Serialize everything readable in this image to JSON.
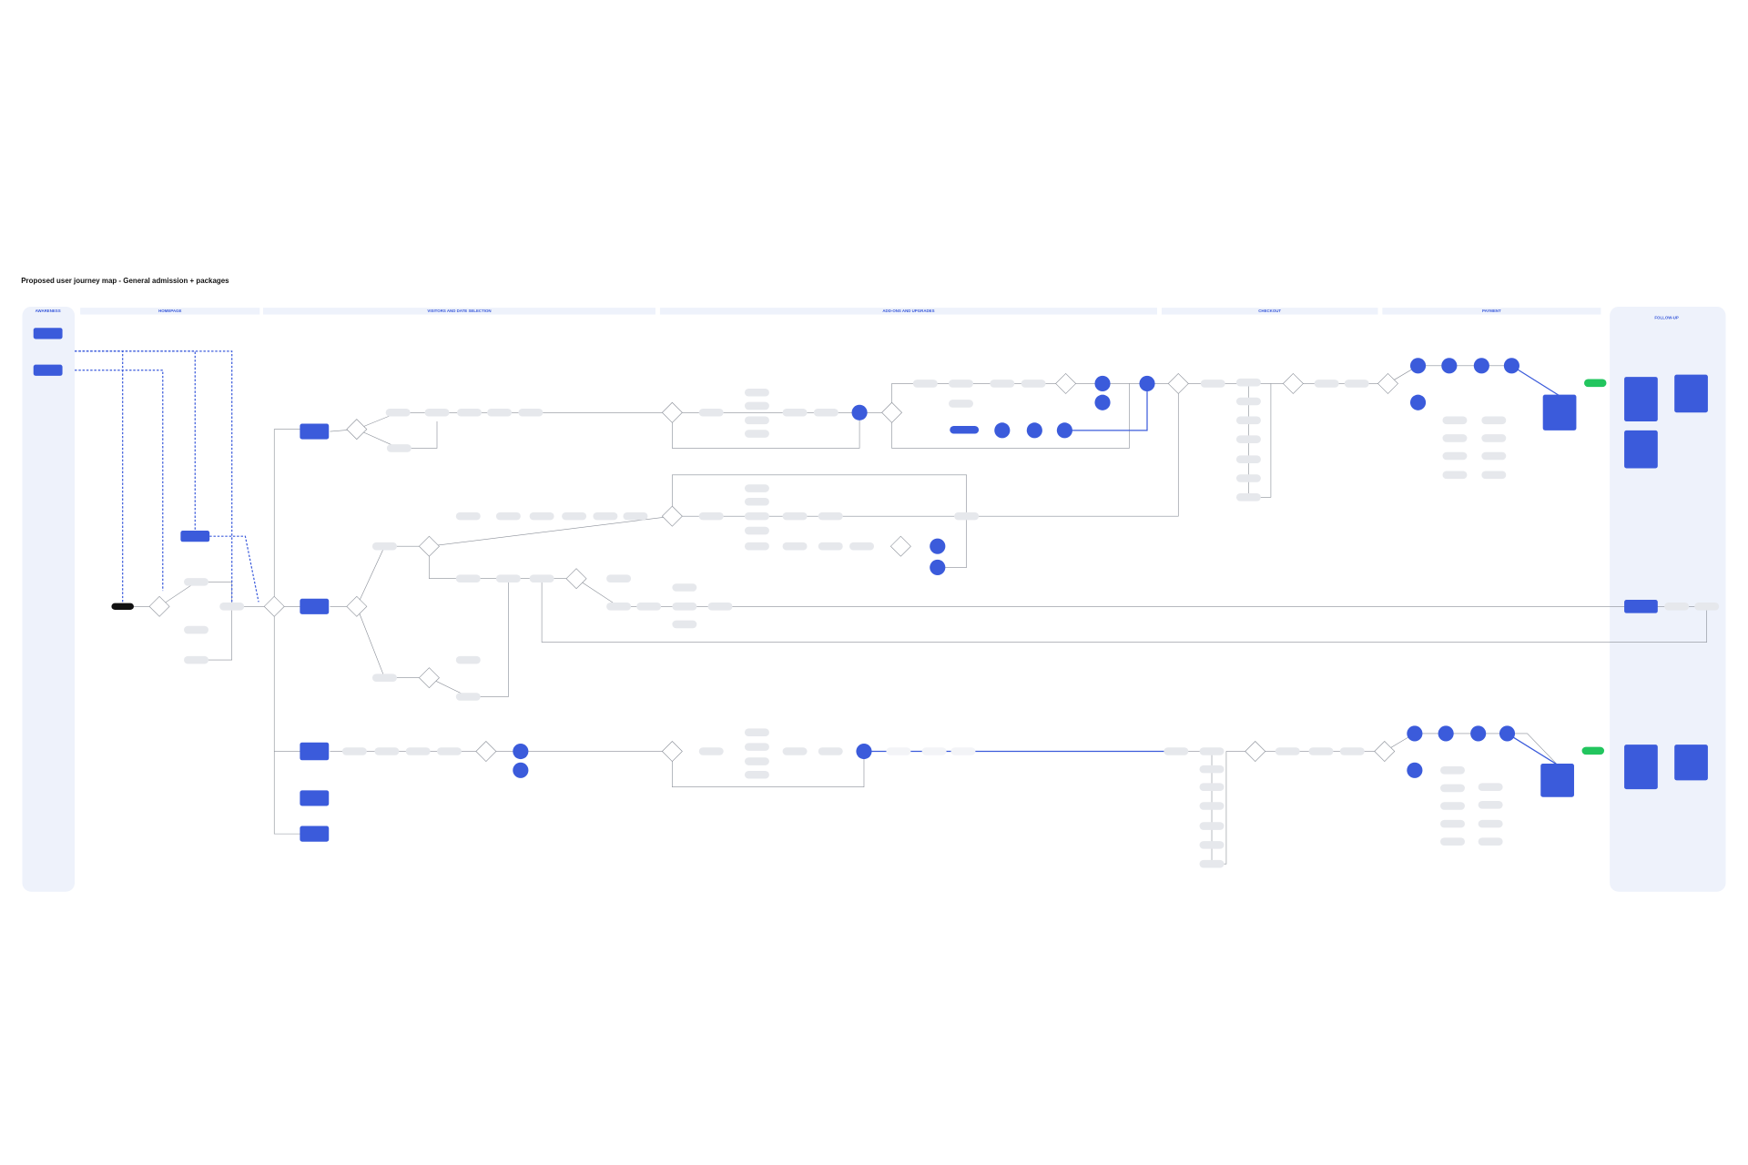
{
  "header": {
    "title": "Proposed user journey map - General admission + packages"
  },
  "sections": [
    "AWARENESS",
    "HOMEPAGE",
    "VISITORS AND DATE SELECTION",
    "ADD-ONS AND UPGRADES",
    "CHECKOUT",
    "PAYMENT",
    "FOLLOW-UP"
  ]
}
